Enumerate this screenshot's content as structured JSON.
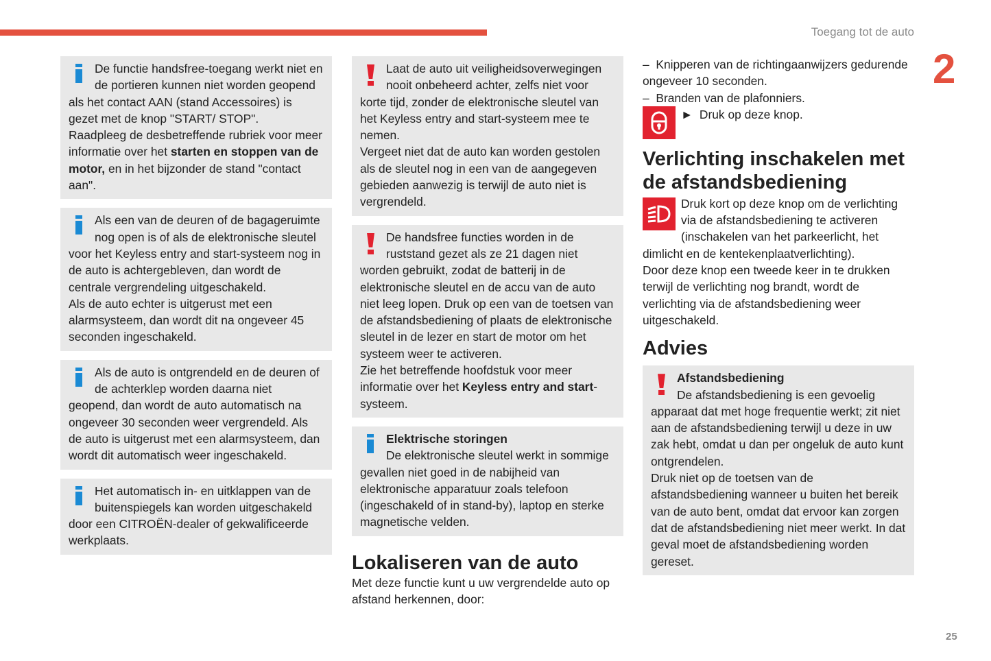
{
  "header": {
    "section": "Toegang tot de auto",
    "chapter": "2",
    "page": "25"
  },
  "col1": [
    {
      "icon": "info",
      "p1": "De functie handsfree-toegang werkt niet en de portieren kunnen niet worden geopend als het contact AAN (stand Accessoires) is gezet met de knop \"START/ STOP\".",
      "p2a": "Raadpleeg de desbetreffende rubriek voor meer informatie over het ",
      "p2b": "starten en stoppen van de motor,",
      "p2c": " en in het bijzonder de stand \"contact aan\"."
    },
    {
      "icon": "info",
      "p1": "Als een van de deuren of de bagageruimte nog open is of als de elektronische sleutel voor het Keyless entry and start-systeem nog in de auto is achtergebleven, dan wordt de centrale vergrendeling uitgeschakeld.",
      "p2": "Als de auto echter is uitgerust met een alarmsysteem, dan wordt dit na ongeveer 45 seconden ingeschakeld."
    },
    {
      "icon": "info",
      "p1": "Als de auto is ontgrendeld en de deuren of de achterklep worden daarna niet geopend, dan wordt de auto automatisch na ongeveer 30 seconden weer vergrendeld. Als de auto is uitgerust met een alarmsysteem, dan wordt dit automatisch weer ingeschakeld."
    },
    {
      "icon": "info",
      "p1": "Het automatisch in- en uitklappen van de buitenspiegels kan worden uitgeschakeld door een CITROËN-dealer of gekwalificeerde werkplaats."
    }
  ],
  "col2": {
    "boxes": [
      {
        "icon": "warning",
        "p1": "Laat de auto uit veiligheidsoverwegingen nooit onbeheerd achter, zelfs niet voor korte tijd, zonder de elektronische sleutel van het Keyless entry and start-systeem mee te nemen.",
        "p2": "Vergeet niet dat de auto kan worden gestolen als de sleutel nog in een van de aangegeven gebieden aanwezig is terwijl de auto niet is vergrendeld."
      },
      {
        "icon": "warning",
        "p1": "De handsfree functies worden in de ruststand gezet als ze 21 dagen niet worden gebruikt, zodat de batterij in de elektronische sleutel en de accu van de auto niet leeg lopen. Druk op een van de toetsen van de afstandsbediening of plaats de elektronische sleutel in de lezer en start de motor om het systeem weer te activeren.",
        "p2a": "Zie het betreffende hoofdstuk voor meer informatie over het ",
        "p2b": "Keyless entry and start",
        "p2c": "-systeem."
      },
      {
        "icon": "info",
        "title": "Elektrische storingen",
        "p1": "De elektronische sleutel werkt in sommige gevallen niet goed in de nabijheid van elektronische apparatuur zoals telefoon (ingeschakeld of in stand-by), laptop en sterke magnetische velden."
      }
    ],
    "heading": "Lokaliseren van de auto",
    "text": "Met deze functie kunt u uw vergrendelde auto op afstand herkennen, door:"
  },
  "col3": {
    "dashes": [
      "Knipperen van de richtingaanwijzers gedurende ongeveer 10 seconden.",
      "Branden van de plafonniers."
    ],
    "dash_char": "–",
    "step": "Druk op deze knop.",
    "step_marker": "►",
    "heading1": "Verlichting inschakelen met de afstandsbediening",
    "light_p1": "Druk kort op deze knop om de verlichting via de afstandsbediening te activeren (inschakelen van het parkeerlicht, het dimlicht en de kentekenplaatverlichting).",
    "light_p2": "Door deze knop een tweede keer in te drukken terwijl de verlichting nog brandt, wordt de verlichting via de afstandsbediening weer uitgeschakeld.",
    "heading2": "Advies",
    "advice": {
      "icon": "warning",
      "title": "Afstandsbediening",
      "p1": "De afstandsbediening is een gevoelig apparaat dat met hoge frequentie werkt; zit niet aan de afstandsbediening terwijl u deze in uw zak hebt, omdat u dan per ongeluk de auto kunt ontgrendelen.",
      "p2": "Druk niet op de toetsen van de afstandsbediening wanneer u buiten het bereik van de auto bent, omdat dat ervoor kan zorgen dat de afstandsbediening niet meer werkt. In dat geval moet de afstandsbediening worden gereset."
    }
  },
  "colors": {
    "accent": "#e4513f",
    "info": "#1a8ad4",
    "warning": "#e2222f",
    "box": "#e8e8e8"
  }
}
